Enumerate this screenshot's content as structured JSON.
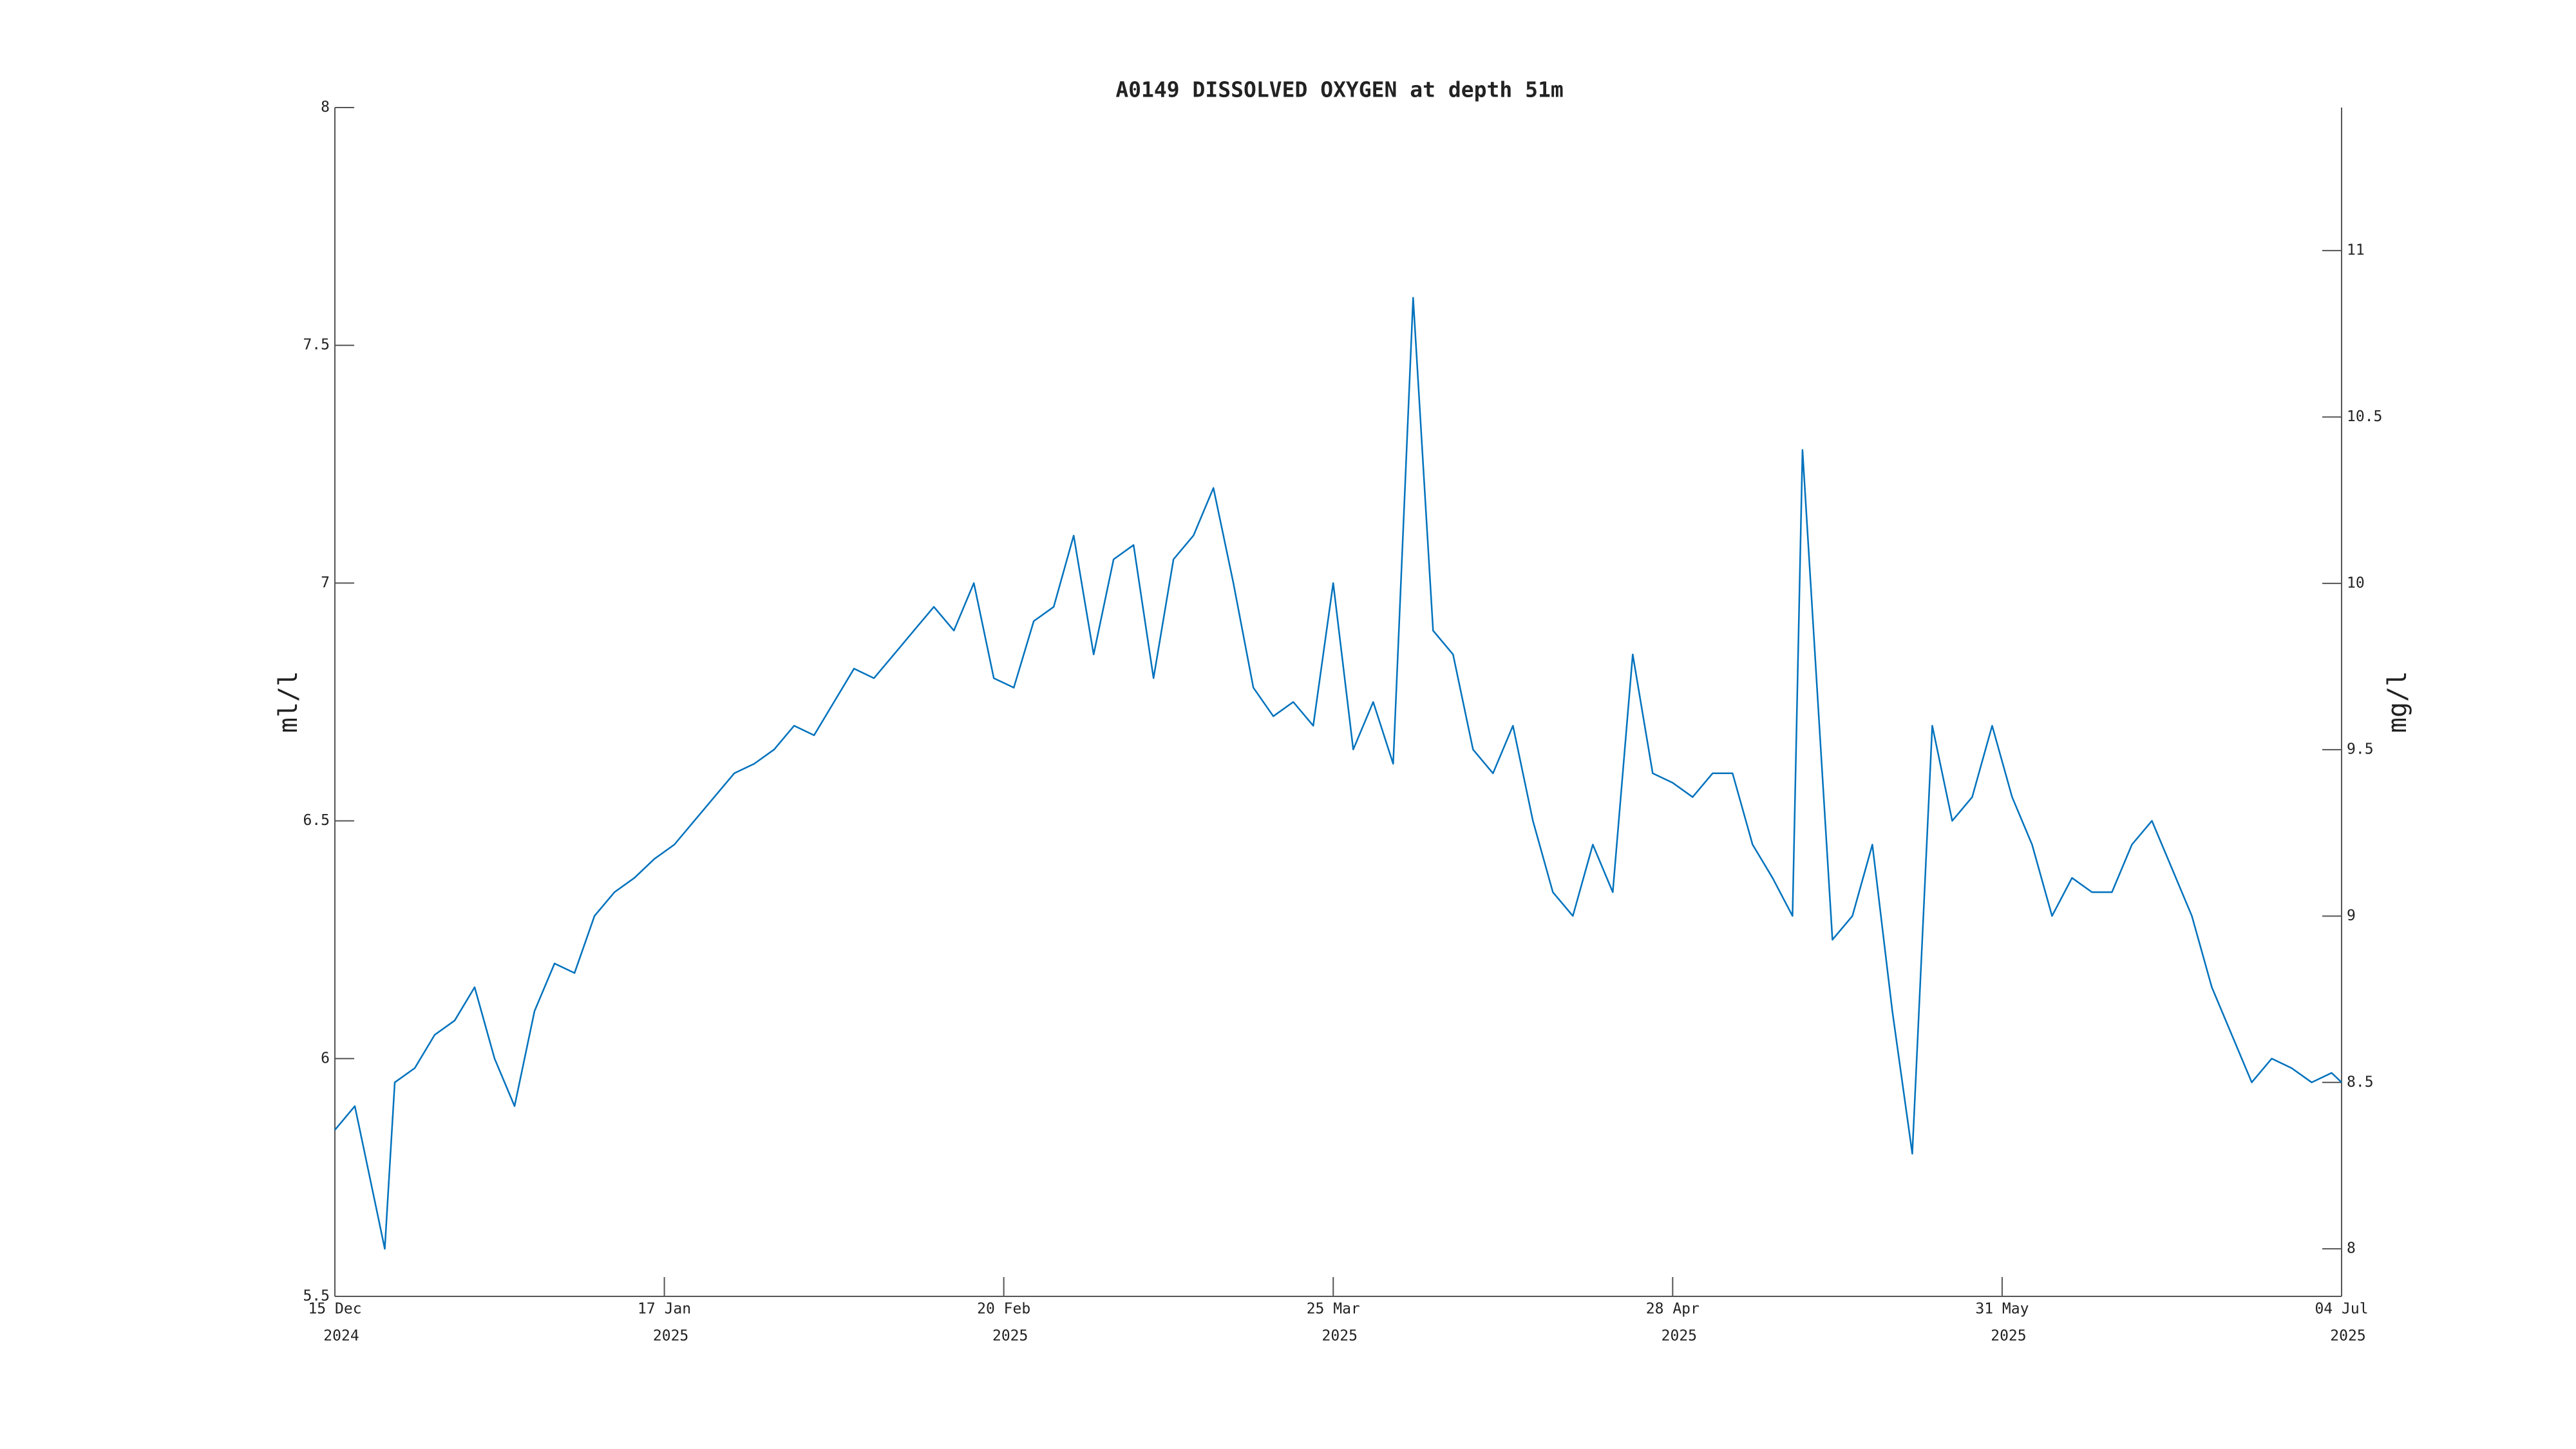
{
  "chart_data": {
    "type": "line",
    "title": "A0149 DISSOLVED OXYGEN at depth 51m",
    "ylabel": "ml/l",
    "y2label": "mg/l",
    "color": "#0072bd",
    "x": [
      "2024-12-15",
      "2024-12-17",
      "2024-12-19",
      "2024-12-20",
      "2024-12-21",
      "2024-12-23",
      "2024-12-25",
      "2024-12-27",
      "2024-12-29",
      "2024-12-31",
      "2025-01-02",
      "2025-01-04",
      "2025-01-06",
      "2025-01-08",
      "2025-01-10",
      "2025-01-12",
      "2025-01-14",
      "2025-01-16",
      "2025-01-18",
      "2025-01-20",
      "2025-01-22",
      "2025-01-24",
      "2025-01-26",
      "2025-01-28",
      "2025-01-30",
      "2025-02-01",
      "2025-02-03",
      "2025-02-05",
      "2025-02-07",
      "2025-02-09",
      "2025-02-11",
      "2025-02-13",
      "2025-02-15",
      "2025-02-17",
      "2025-02-19",
      "2025-02-21",
      "2025-02-23",
      "2025-02-25",
      "2025-02-27",
      "2025-03-01",
      "2025-03-03",
      "2025-03-05",
      "2025-03-07",
      "2025-03-09",
      "2025-03-11",
      "2025-03-13",
      "2025-03-15",
      "2025-03-17",
      "2025-03-19",
      "2025-03-21",
      "2025-03-23",
      "2025-03-25",
      "2025-03-27",
      "2025-03-29",
      "2025-03-31",
      "2025-04-02",
      "2025-04-04",
      "2025-04-06",
      "2025-04-08",
      "2025-04-10",
      "2025-04-12",
      "2025-04-14",
      "2025-04-16",
      "2025-04-18",
      "2025-04-20",
      "2025-04-22",
      "2025-04-24",
      "2025-04-26",
      "2025-04-28",
      "2025-04-30",
      "2025-05-02",
      "2025-05-04",
      "2025-05-06",
      "2025-05-08",
      "2025-05-10",
      "2025-05-11",
      "2025-05-14",
      "2025-05-16",
      "2025-05-18",
      "2025-05-20",
      "2025-05-22",
      "2025-05-24",
      "2025-05-26",
      "2025-05-28",
      "2025-05-30",
      "2025-06-01",
      "2025-06-03",
      "2025-06-05",
      "2025-06-07",
      "2025-06-09",
      "2025-06-11",
      "2025-06-13",
      "2025-06-15",
      "2025-06-17",
      "2025-06-19",
      "2025-06-21",
      "2025-06-23",
      "2025-06-25",
      "2025-06-27",
      "2025-06-29",
      "2025-07-01",
      "2025-07-03",
      "2025-07-04"
    ],
    "values": [
      5.85,
      5.9,
      5.7,
      5.6,
      5.95,
      5.98,
      6.05,
      6.08,
      6.15,
      6.0,
      5.9,
      6.1,
      6.2,
      6.18,
      6.3,
      6.35,
      6.38,
      6.42,
      6.45,
      6.5,
      6.55,
      6.6,
      6.62,
      6.65,
      6.7,
      6.68,
      6.75,
      6.82,
      6.8,
      6.85,
      6.9,
      6.95,
      6.9,
      7.0,
      6.8,
      6.78,
      6.92,
      6.95,
      7.1,
      6.85,
      7.05,
      7.08,
      6.8,
      7.05,
      7.1,
      7.2,
      7.0,
      6.78,
      6.72,
      6.75,
      6.7,
      7.0,
      6.65,
      6.75,
      6.62,
      7.6,
      6.9,
      6.85,
      6.65,
      6.6,
      6.7,
      6.5,
      6.35,
      6.3,
      6.45,
      6.35,
      6.85,
      6.6,
      6.58,
      6.55,
      6.6,
      6.6,
      6.45,
      6.38,
      6.3,
      7.28,
      6.25,
      6.3,
      6.45,
      6.1,
      5.8,
      6.7,
      6.5,
      6.55,
      6.7,
      6.55,
      6.45,
      6.3,
      6.38,
      6.35,
      6.35,
      6.45,
      6.5,
      6.4,
      6.3,
      6.15,
      6.05,
      5.95,
      6.0,
      5.98,
      5.95,
      5.97,
      5.95
    ],
    "xlim": [
      "2024-12-15",
      "2025-07-04"
    ],
    "xticks": [
      {
        "value": "2024-12-15",
        "label": [
          "15 Dec",
          "2024"
        ]
      },
      {
        "value": "2025-01-17",
        "label": [
          "17 Jan",
          "2025"
        ]
      },
      {
        "value": "2025-02-20",
        "label": [
          "20 Feb",
          "2025"
        ]
      },
      {
        "value": "2025-03-25",
        "label": [
          "25 Mar",
          "2025"
        ]
      },
      {
        "value": "2025-04-28",
        "label": [
          "28 Apr",
          "2025"
        ]
      },
      {
        "value": "2025-05-31",
        "label": [
          "31 May",
          "2025"
        ]
      },
      {
        "value": "2025-07-04",
        "label": [
          "04 Jul",
          "2025"
        ]
      }
    ],
    "ylim": [
      5.5,
      8
    ],
    "yticks": [
      5.5,
      6,
      6.5,
      7,
      7.5,
      8
    ],
    "y2lim": [
      7.857,
      11.43
    ],
    "y2ticks": [
      8,
      8.5,
      9,
      9.5,
      10,
      10.5,
      11
    ]
  }
}
